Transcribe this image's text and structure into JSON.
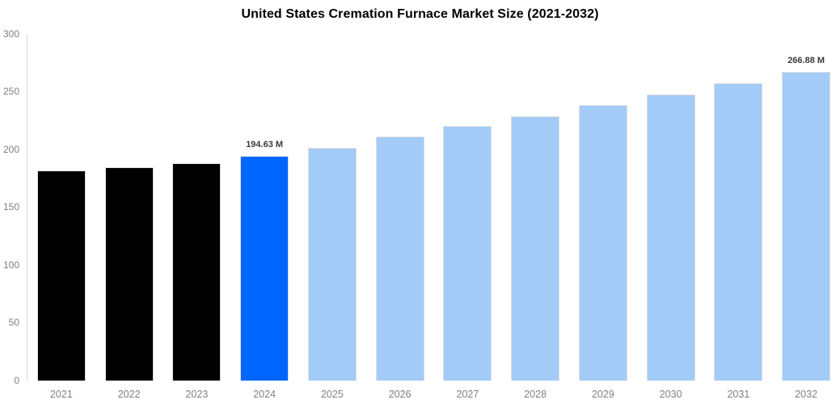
{
  "chart_data": {
    "type": "bar",
    "title": "United States Cremation Furnace Market Size (2021-2032)",
    "xlabel": "",
    "ylabel": "",
    "unit": "M",
    "ylim": [
      0,
      300
    ],
    "yticks": [
      0,
      50,
      100,
      150,
      200,
      250,
      300
    ],
    "grid": false,
    "legend": null,
    "categories": [
      "2021",
      "2022",
      "2023",
      "2024",
      "2025",
      "2026",
      "2027",
      "2028",
      "2029",
      "2030",
      "2031",
      "2032"
    ],
    "values": [
      182,
      184.5,
      188,
      194.63,
      201.5,
      211,
      220,
      229,
      238.5,
      247.5,
      257.5,
      266.88
    ],
    "data_labels": {
      "2024": "194.63 M",
      "2032": "266.88 M"
    },
    "bar_color_keys": [
      "historical",
      "historical",
      "historical",
      "highlight",
      "forecast",
      "forecast",
      "forecast",
      "forecast",
      "forecast",
      "forecast",
      "forecast",
      "forecast"
    ],
    "colors": {
      "historical": "#000000",
      "highlight": "#0066ff",
      "forecast": "#a2cbf8",
      "axis_line": "#d9d9d9",
      "tick_text": "#808080",
      "value_label_text": "#3a3a3a",
      "title_text": "#000000",
      "background": "#ffffff"
    }
  }
}
